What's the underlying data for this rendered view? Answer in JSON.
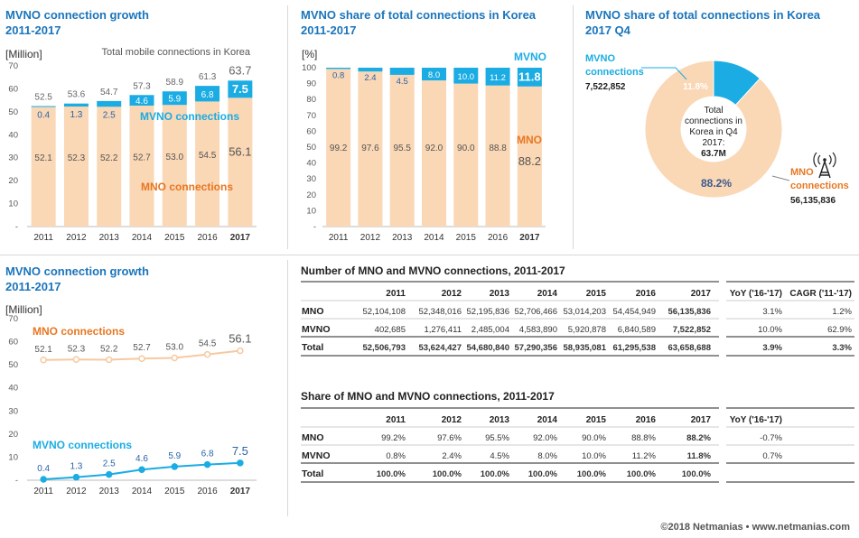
{
  "panels": {
    "p1_title_1": "MVNO connection growth",
    "p1_title_2": "2011-2017",
    "p2_title_1": "MVNO share of total connections in Korea",
    "p2_title_2": "2011-2017",
    "p3_title_1": "MVNO share of total connections in Korea",
    "p3_title_2": "2017 Q4",
    "p4_title_1": "MVNO connection growth",
    "p4_title_2": "2011-2017"
  },
  "colors": {
    "title": "#1a75bc",
    "mno": "#fad7b5",
    "mvno": "#1aace3",
    "mno_text": "#e87722",
    "mvno_text": "#1aace3"
  },
  "chart_data": [
    {
      "id": "stacked_connections",
      "type": "bar",
      "ylabel": "[Million]",
      "annotation": "Total mobile connections in Korea",
      "ylim": [
        0,
        70
      ],
      "yticks": [
        0,
        10,
        20,
        30,
        40,
        50,
        60,
        70
      ],
      "categories": [
        "2011",
        "2012",
        "2013",
        "2014",
        "2015",
        "2016",
        "2017"
      ],
      "series": [
        {
          "name": "MNO connections",
          "values": [
            52.1,
            52.3,
            52.2,
            52.7,
            53.0,
            54.5,
            56.1
          ]
        },
        {
          "name": "MVNO connections",
          "values": [
            0.4,
            1.3,
            2.5,
            4.6,
            5.9,
            6.8,
            7.5
          ]
        }
      ],
      "totals": [
        52.5,
        53.6,
        54.7,
        57.3,
        58.9,
        61.3,
        63.7
      ],
      "mno_labels": [
        "52.1",
        "52.3",
        "52.2",
        "52.7",
        "53.0",
        "54.5",
        "56.1"
      ],
      "mvno_labels": [
        "0.4",
        "1.3",
        "2.5",
        "4.6",
        "5.9",
        "6.8",
        "7.5"
      ],
      "total_labels": [
        "52.5",
        "53.6",
        "54.7",
        "57.3",
        "58.9",
        "61.3",
        "63.7"
      ]
    },
    {
      "id": "share_100",
      "type": "bar",
      "ylabel": "[%]",
      "ylim": [
        0,
        100
      ],
      "yticks": [
        0,
        10,
        20,
        30,
        40,
        50,
        60,
        70,
        80,
        90,
        100
      ],
      "categories": [
        "2011",
        "2012",
        "2013",
        "2014",
        "2015",
        "2016",
        "2017"
      ],
      "series": [
        {
          "name": "MNO",
          "values": [
            99.2,
            97.6,
            95.5,
            92.0,
            90.0,
            88.8,
            88.2
          ]
        },
        {
          "name": "MVNO",
          "values": [
            0.8,
            2.4,
            4.5,
            8.0,
            10.0,
            11.2,
            11.8
          ]
        }
      ],
      "mno_labels": [
        "99.2",
        "97.6",
        "95.5",
        "92.0",
        "90.0",
        "88.8",
        "88.2"
      ],
      "mvno_labels": [
        "0.8",
        "2.4",
        "4.5",
        "8.0",
        "10.0",
        "11.2",
        "11.8"
      ]
    },
    {
      "id": "donut_q4",
      "type": "pie",
      "series": [
        {
          "name": "MVNO connections",
          "value": 11.8,
          "count": "7,522,852",
          "label": "11.8%"
        },
        {
          "name": "MNO connections",
          "value": 88.2,
          "count": "56,135,836",
          "label": "88.2%"
        }
      ],
      "center_lines": [
        "Total",
        "connections in",
        "Korea in Q4",
        "2017:"
      ],
      "center_total": "63.7M",
      "mvno_lines": [
        "MVNO",
        "connections"
      ],
      "mno_lines": [
        "MNO",
        "connections"
      ]
    },
    {
      "id": "line_growth",
      "type": "line",
      "ylabel": "[Million]",
      "ylim": [
        0,
        70
      ],
      "yticks": [
        0,
        10,
        20,
        30,
        40,
        50,
        60,
        70
      ],
      "categories": [
        "2011",
        "2012",
        "2013",
        "2014",
        "2015",
        "2016",
        "2017"
      ],
      "series": [
        {
          "name": "MNO connections",
          "values": [
            52.1,
            52.3,
            52.2,
            52.7,
            53.0,
            54.5,
            56.1
          ]
        },
        {
          "name": "MVNO connections",
          "values": [
            0.4,
            1.3,
            2.5,
            4.6,
            5.9,
            6.8,
            7.5
          ]
        }
      ],
      "mno_labels": [
        "52.1",
        "52.3",
        "52.2",
        "52.7",
        "53.0",
        "54.5",
        "56.1"
      ],
      "mvno_labels": [
        "0.4",
        "1.3",
        "2.5",
        "4.6",
        "5.9",
        "6.8",
        "7.5"
      ]
    }
  ],
  "tables": {
    "numbers": {
      "title": "Number of MNO and MVNO connections, 2011-2017",
      "columns": [
        "",
        "2011",
        "2012",
        "2013",
        "2014",
        "2015",
        "2016",
        "2017",
        "YoY (ʹ16-ʹ17)",
        "CAGR (ʹ11-ʹ17)"
      ],
      "rows": [
        {
          "label": "MNO",
          "cells": [
            "52,104,108",
            "52,348,016",
            "52,195,836",
            "52,706,466",
            "53,014,203",
            "54,454,949",
            "56,135,836",
            "3.1%",
            "1.2%"
          ]
        },
        {
          "label": "MVNO",
          "cells": [
            "402,685",
            "1,276,411",
            "2,485,004",
            "4,583,890",
            "5,920,878",
            "6,840,589",
            "7,522,852",
            "10.0%",
            "62.9%"
          ]
        },
        {
          "label": "Total",
          "cells": [
            "52,506,793",
            "53,624,427",
            "54,680,840",
            "57,290,356",
            "58,935,081",
            "61,295,538",
            "63,658,688",
            "3.9%",
            "3.3%"
          ]
        }
      ]
    },
    "share": {
      "title": "Share of MNO and MVNO connections, 2011-2017",
      "columns": [
        "",
        "2011",
        "2012",
        "2013",
        "2014",
        "2015",
        "2016",
        "2017",
        "YoY (ʹ16-ʹ17)"
      ],
      "rows": [
        {
          "label": "MNO",
          "cells": [
            "99.2%",
            "97.6%",
            "95.5%",
            "92.0%",
            "90.0%",
            "88.8%",
            "88.2%",
            "-0.7%"
          ]
        },
        {
          "label": "MVNO",
          "cells": [
            "0.8%",
            "2.4%",
            "4.5%",
            "8.0%",
            "10.0%",
            "11.2%",
            "11.8%",
            "0.7%"
          ]
        },
        {
          "label": "Total",
          "cells": [
            "100.0%",
            "100.0%",
            "100.0%",
            "100.0%",
            "100.0%",
            "100.0%",
            "100.0%",
            ""
          ]
        }
      ]
    }
  },
  "footer": "©2018 Netmanias • www.netmanias.com"
}
